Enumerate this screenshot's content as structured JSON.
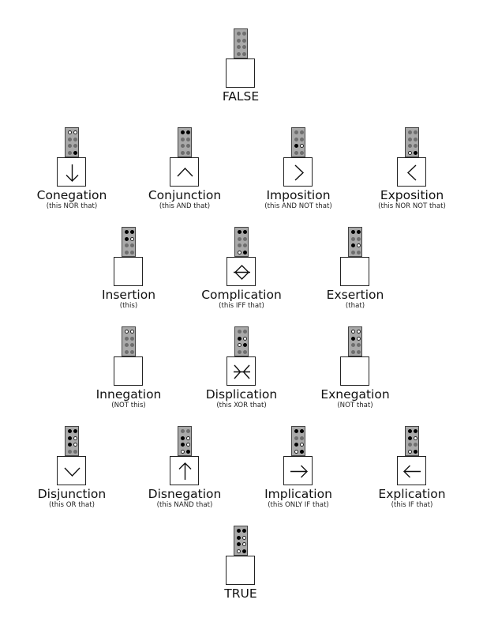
{
  "nodes": [
    {
      "id": "false",
      "name": "FALSE",
      "sub": "",
      "symbol": "",
      "dots": [
        "n",
        "n",
        "n",
        "n",
        "n",
        "n",
        "n",
        "n"
      ]
    },
    {
      "id": "conegation",
      "name": "Conegation",
      "sub": "(this NOR that)",
      "symbol": "down-arrow",
      "dots": [
        "f",
        "f",
        "n",
        "n",
        "n",
        "n",
        "n",
        "t"
      ]
    },
    {
      "id": "conjunction",
      "name": "Conjunction",
      "sub": "(this AND that)",
      "symbol": "wedge",
      "dots": [
        "t",
        "t",
        "n",
        "n",
        "n",
        "n",
        "n",
        "n"
      ]
    },
    {
      "id": "imposition",
      "name": "Imposition",
      "sub": "(this AND NOT that)",
      "symbol": "greater-than",
      "dots": [
        "n",
        "n",
        "n",
        "n",
        "t",
        "f",
        "n",
        "n"
      ]
    },
    {
      "id": "exposition",
      "name": "Exposition",
      "sub": "(this NOR NOT that)",
      "symbol": "less-than",
      "dots": [
        "n",
        "n",
        "n",
        "n",
        "n",
        "n",
        "f",
        "t"
      ]
    },
    {
      "id": "insertion",
      "name": "Insertion",
      "sub": "(this)",
      "symbol": "",
      "dots": [
        "t",
        "t",
        "t",
        "f",
        "n",
        "n",
        "n",
        "n"
      ]
    },
    {
      "id": "complication",
      "name": "Complication",
      "sub": "(this IFF that)",
      "symbol": "iff",
      "dots": [
        "t",
        "t",
        "n",
        "n",
        "n",
        "n",
        "f",
        "t"
      ]
    },
    {
      "id": "exsertion",
      "name": "Exsertion",
      "sub": "(that)",
      "symbol": "",
      "dots": [
        "t",
        "t",
        "n",
        "n",
        "t",
        "f",
        "n",
        "n"
      ]
    },
    {
      "id": "innegation",
      "name": "Innegation",
      "sub": "(NOT this)",
      "symbol": "",
      "dots": [
        "f",
        "f",
        "n",
        "n",
        "n",
        "n",
        "n",
        "n"
      ]
    },
    {
      "id": "displication",
      "name": "Displication",
      "sub": "(this XOR that)",
      "symbol": "xor",
      "dots": [
        "n",
        "n",
        "t",
        "f",
        "f",
        "t",
        "n",
        "n"
      ]
    },
    {
      "id": "exnegation",
      "name": "Exnegation",
      "sub": "(NOT that)",
      "symbol": "",
      "dots": [
        "f",
        "f",
        "t",
        "f",
        "n",
        "n",
        "n",
        "n"
      ]
    },
    {
      "id": "disjunction",
      "name": "Disjunction",
      "sub": "(this OR that)",
      "symbol": "vee",
      "dots": [
        "t",
        "t",
        "t",
        "f",
        "t",
        "f",
        "n",
        "n"
      ]
    },
    {
      "id": "disnegation",
      "name": "Disnegation",
      "sub": "(this NAND that)",
      "symbol": "up-arrow",
      "dots": [
        "n",
        "n",
        "t",
        "f",
        "t",
        "f",
        "f",
        "t"
      ]
    },
    {
      "id": "implication",
      "name": "Implication",
      "sub": "(this ONLY IF that)",
      "symbol": "right-arrow",
      "dots": [
        "t",
        "t",
        "n",
        "n",
        "t",
        "f",
        "f",
        "t"
      ]
    },
    {
      "id": "explication",
      "name": "Explication",
      "sub": "(this IF that)",
      "symbol": "left-arrow",
      "dots": [
        "t",
        "t",
        "t",
        "f",
        "n",
        "n",
        "f",
        "t"
      ]
    },
    {
      "id": "true",
      "name": "TRUE",
      "sub": "",
      "symbol": "",
      "dots": [
        "t",
        "t",
        "t",
        "f",
        "t",
        "f",
        "f",
        "t"
      ]
    }
  ]
}
